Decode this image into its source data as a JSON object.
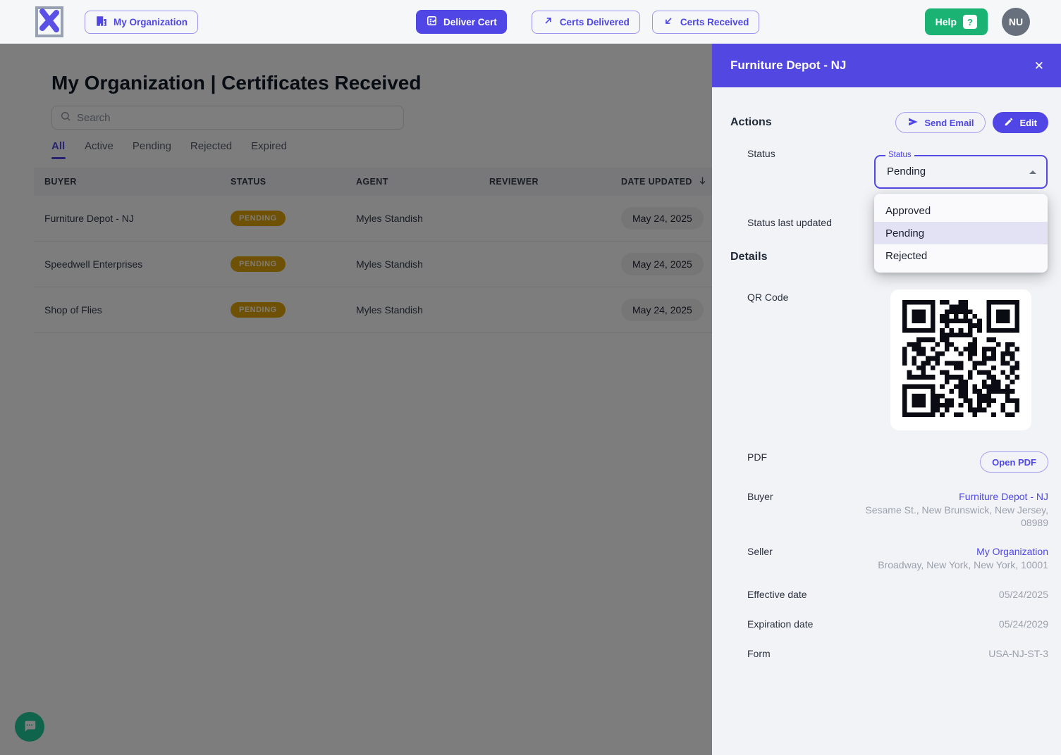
{
  "navbar": {
    "my_organization": "My Organization",
    "deliver_cert": "Deliver Cert",
    "certs_delivered": "Certs Delivered",
    "certs_received": "Certs Received",
    "help": "Help",
    "help_icon": "?",
    "avatar_initials": "NU"
  },
  "main": {
    "title": "My Organization | Certificates Received",
    "search_placeholder": "Search",
    "tabs": [
      {
        "label": "All",
        "active": true
      },
      {
        "label": "Active",
        "active": false
      },
      {
        "label": "Pending",
        "active": false
      },
      {
        "label": "Rejected",
        "active": false
      },
      {
        "label": "Expired",
        "active": false
      }
    ],
    "table": {
      "columns": [
        "BUYER",
        "STATUS",
        "AGENT",
        "REVIEWER",
        "DATE UPDATED"
      ],
      "sorted_by": "DATE UPDATED",
      "sort_direction": "desc",
      "rows": [
        {
          "buyer": "Furniture Depot - NJ",
          "status": "PENDING",
          "agent": "Myles Standish",
          "reviewer": "",
          "date_updated": "May 24, 2025"
        },
        {
          "buyer": "Speedwell Enterprises",
          "status": "PENDING",
          "agent": "Myles Standish",
          "reviewer": "",
          "date_updated": "May 24, 2025"
        },
        {
          "buyer": "Shop of Flies",
          "status": "PENDING",
          "agent": "Myles Standish",
          "reviewer": "",
          "date_updated": "May 24, 2025"
        }
      ]
    }
  },
  "drawer": {
    "title": "Furniture Depot - NJ",
    "close_icon": "✕",
    "actions_heading": "Actions",
    "send_email": "Send Email",
    "edit": "Edit",
    "status_row_label": "Status",
    "status_field": {
      "label": "Status",
      "value": "Pending"
    },
    "status_options": [
      {
        "label": "Approved",
        "selected": false
      },
      {
        "label": "Pending",
        "selected": true
      },
      {
        "label": "Rejected",
        "selected": false
      }
    ],
    "status_last_updated_label": "Status last updated",
    "details_heading": "Details",
    "qr_label": "QR Code",
    "pdf_label": "PDF",
    "open_pdf": "Open PDF",
    "buyer": {
      "label": "Buyer",
      "name": "Furniture Depot - NJ",
      "address_line1": "Sesame St., New Brunswick, New Jersey,",
      "address_line2": "08989"
    },
    "seller": {
      "label": "Seller",
      "name": "My Organization",
      "address": "Broadway, New York, New York, 10001"
    },
    "effective_date": {
      "label": "Effective date",
      "value": "05/24/2025"
    },
    "expiration_date": {
      "label": "Expiration date",
      "value": "05/24/2029"
    },
    "form": {
      "label": "Form",
      "value": "USA-NJ-ST-3"
    }
  },
  "colors": {
    "accent_purple": "#4F46E5",
    "drawer_header_purple": "#5247E0",
    "help_green": "#1AB374",
    "pending_gold": "#DFA20D"
  }
}
